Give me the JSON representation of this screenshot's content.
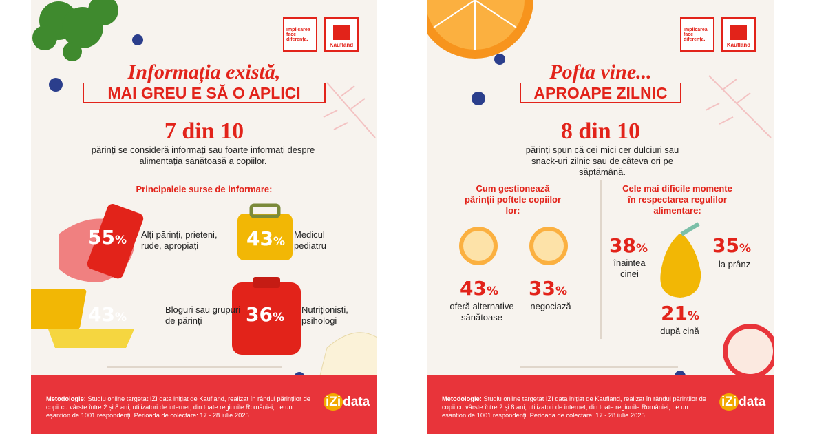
{
  "footer": {
    "label": "Metodologie:",
    "text": "Studiu online targetat IZI data inițiat de Kaufland, realizat în rândul părinților de copii cu vârste între 2 și 8 ani, utilizatori de internet, din toate regiunile României, pe un eșantion de 1001 respondenți. Perioada de colectare: 17 - 28 iulie 2025.",
    "brand_a": "iZi",
    "brand_b": "data"
  },
  "logo": {
    "slogan": "Implicarea face diferența.",
    "brand": "Kaufland"
  },
  "left": {
    "title_line1": "Informația există,",
    "title_line2": "MAI GREU E SĂ O APLICI",
    "headline": "7 din 10",
    "intro": "părinți se consideră informați sau foarte informați despre alimentația sănătoasă a copiilor.",
    "sources_heading": "Principalele surse de informare:",
    "sources": [
      {
        "number": 55,
        "unit": "%",
        "label": "Alți părinți, prieteni, rude, apropiați"
      },
      {
        "number": 43,
        "unit": "%",
        "label": "Medicul pediatru"
      },
      {
        "number": 43,
        "unit": "%",
        "label": "Bloguri sau grupuri de părinți"
      },
      {
        "number": 36,
        "unit": "%",
        "label": "Nutriționiști, psihologi"
      }
    ]
  },
  "right": {
    "title_line1": "Pofta vine...",
    "title_line2": "APROAPE ZILNIC",
    "headline": "8 din 10",
    "intro": "părinți spun că cei mici cer dulciuri sau snack-uri zilnic sau de câteva ori pe săptămână.",
    "manage_heading": "Cum gestionează părinții poftele copiilor lor:",
    "manage": [
      {
        "number": 43,
        "unit": "%",
        "label": "oferă alternative sănătoase"
      },
      {
        "number": 33,
        "unit": "%",
        "label": "negociază"
      }
    ],
    "moments_heading": "Cele mai dificile momente în respectarea regulilor alimentare:",
    "moments": [
      {
        "number": 38,
        "unit": "%",
        "label": "înaintea cinei"
      },
      {
        "number": 35,
        "unit": "%",
        "label": "la prânz"
      },
      {
        "number": 21,
        "unit": "%",
        "label": "după cină"
      }
    ]
  }
}
